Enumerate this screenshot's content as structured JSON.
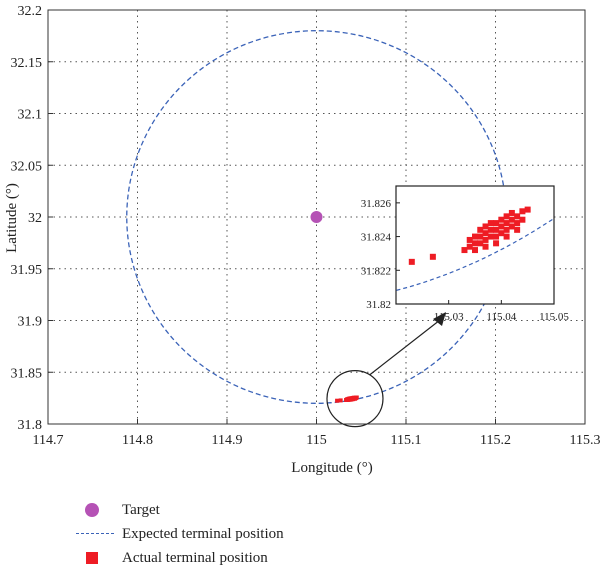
{
  "chart_data": {
    "type": "scatter",
    "xlabel": "Longitude (°)",
    "ylabel": "Latitude (°)",
    "xlim": [
      114.7,
      115.3
    ],
    "ylim": [
      31.8,
      32.2
    ],
    "xticks": [
      "114.7",
      "114.8",
      "114.9",
      "115",
      "115.1",
      "115.2",
      "115.3"
    ],
    "yticks": [
      "31.8",
      "31.85",
      "31.9",
      "31.95",
      "32",
      "32.05",
      "32.1",
      "32.15",
      "32.2"
    ],
    "grid": true,
    "target": {
      "name": "Target",
      "x": 115.0,
      "y": 32.0,
      "color": "#b552b5"
    },
    "expected_circle": {
      "name": "Expected terminal position",
      "center_lon": 115.0,
      "center_lat": 32.0,
      "radius_lat_deg": 0.18,
      "radius_lon_deg": 0.212,
      "color": "#3b63b8"
    },
    "actual_positions": {
      "name": "Actual terminal position",
      "color": "#ee1c24",
      "points": [
        [
          115.023,
          31.8225
        ],
        [
          115.027,
          31.8228
        ],
        [
          115.033,
          31.8232
        ],
        [
          115.034,
          31.8234
        ],
        [
          115.034,
          31.8238
        ],
        [
          115.035,
          31.8236
        ],
        [
          115.035,
          31.824
        ],
        [
          115.036,
          31.8236
        ],
        [
          115.036,
          31.824
        ],
        [
          115.036,
          31.8244
        ],
        [
          115.037,
          31.8238
        ],
        [
          115.037,
          31.8242
        ],
        [
          115.037,
          31.8246
        ],
        [
          115.038,
          31.824
        ],
        [
          115.038,
          31.8244
        ],
        [
          115.038,
          31.8248
        ],
        [
          115.039,
          31.824
        ],
        [
          115.039,
          31.8244
        ],
        [
          115.039,
          31.8248
        ],
        [
          115.04,
          31.8242
        ],
        [
          115.04,
          31.8246
        ],
        [
          115.04,
          31.825
        ],
        [
          115.041,
          31.8244
        ],
        [
          115.041,
          31.8248
        ],
        [
          115.041,
          31.8252
        ],
        [
          115.042,
          31.8246
        ],
        [
          115.042,
          31.825
        ],
        [
          115.042,
          31.8254
        ],
        [
          115.043,
          31.8248
        ],
        [
          115.043,
          31.8252
        ],
        [
          115.044,
          31.825
        ],
        [
          115.044,
          31.8255
        ],
        [
          115.045,
          31.8256
        ],
        [
          115.035,
          31.8232
        ],
        [
          115.037,
          31.8234
        ],
        [
          115.039,
          31.8236
        ],
        [
          115.041,
          31.824
        ],
        [
          115.043,
          31.8244
        ]
      ]
    },
    "inset": {
      "xlim": [
        115.02,
        115.05
      ],
      "ylim": [
        31.82,
        31.827
      ],
      "xticks": [
        "115.03",
        "115.04",
        "115.05"
      ],
      "yticks": [
        "31.82",
        "31.822",
        "31.824",
        "31.826"
      ]
    },
    "legend": {
      "position": "bottom-left",
      "entries": [
        "Target",
        "Expected terminal position",
        "Actual terminal position"
      ]
    }
  }
}
